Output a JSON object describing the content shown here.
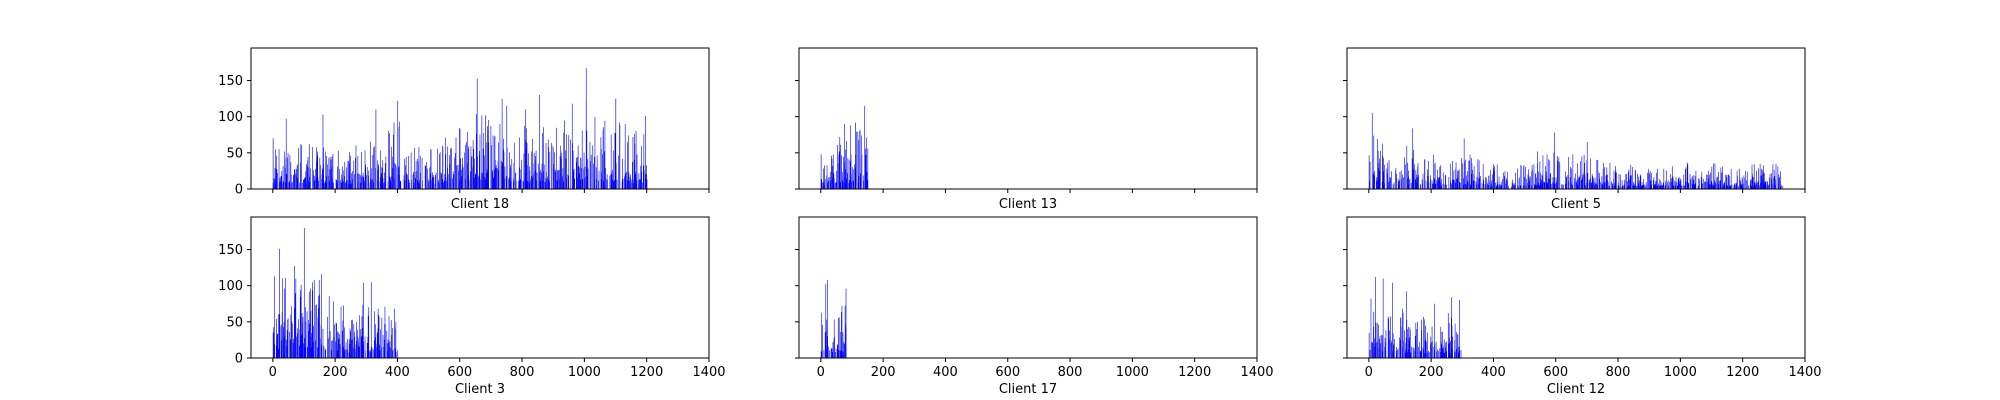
{
  "figure": {
    "layout": "2 rows x 3 columns of bar histograms",
    "sharex": true,
    "sharey": true
  },
  "chart_data": [
    {
      "type": "bar",
      "title": "",
      "xlabel": "Client 18",
      "ylabel": "",
      "xlim": [
        -70,
        1400
      ],
      "ylim": [
        0,
        195
      ],
      "color": "#0000ff",
      "xticks": [
        "0",
        "200",
        "400",
        "600",
        "800",
        "1000",
        "1200",
        "1400"
      ],
      "yticks": [
        "0",
        "50",
        "100",
        "150"
      ],
      "x_max": 1200,
      "peaks": [
        [
          0,
          70
        ],
        [
          42,
          97
        ],
        [
          160,
          103
        ],
        [
          330,
          110
        ],
        [
          400,
          122
        ],
        [
          655,
          153
        ],
        [
          735,
          125
        ],
        [
          750,
          115
        ],
        [
          810,
          110
        ],
        [
          855,
          130
        ],
        [
          960,
          118
        ],
        [
          1005,
          167
        ],
        [
          1100,
          125
        ],
        [
          1130,
          90
        ],
        [
          1165,
          80
        ],
        [
          1195,
          101
        ]
      ]
    },
    {
      "type": "bar",
      "title": "",
      "xlabel": "Client 13",
      "ylabel": "",
      "xlim": [
        -70,
        1400
      ],
      "ylim": [
        0,
        195
      ],
      "color": "#0000ff",
      "xticks": [
        "0",
        "200",
        "400",
        "600",
        "800",
        "1000",
        "1200",
        "1400"
      ],
      "yticks": [
        "0",
        "50",
        "100",
        "150"
      ],
      "x_max": 152,
      "peaks": [
        [
          0,
          14
        ],
        [
          30,
          12
        ],
        [
          60,
          72
        ],
        [
          75,
          90
        ],
        [
          95,
          88
        ],
        [
          110,
          92
        ],
        [
          125,
          82
        ],
        [
          140,
          115
        ],
        [
          150,
          56
        ]
      ]
    },
    {
      "type": "bar",
      "title": "",
      "xlabel": "Client 5",
      "ylabel": "",
      "xlim": [
        -70,
        1400
      ],
      "ylim": [
        0,
        195
      ],
      "color": "#0000ff",
      "xticks": [
        "0",
        "200",
        "400",
        "600",
        "800",
        "1000",
        "1200",
        "1400"
      ],
      "yticks": [
        "0",
        "50",
        "100",
        "150"
      ],
      "x_max": 1330,
      "peaks": [
        [
          10,
          105
        ],
        [
          140,
          84
        ],
        [
          305,
          70
        ],
        [
          540,
          52
        ],
        [
          595,
          78
        ],
        [
          700,
          65
        ],
        [
          900,
          21
        ],
        [
          1010,
          20
        ],
        [
          1260,
          28
        ],
        [
          1315,
          20
        ]
      ]
    },
    {
      "type": "bar",
      "title": "",
      "xlabel": "Client 3",
      "ylabel": "",
      "xlim": [
        -70,
        1400
      ],
      "ylim": [
        0,
        195
      ],
      "color": "#0000ff",
      "xticks": [
        "0",
        "200",
        "400",
        "600",
        "800",
        "1000",
        "1200",
        "1400"
      ],
      "yticks": [
        "0",
        "50",
        "100",
        "150"
      ],
      "x_max": 405,
      "peaks": [
        [
          5,
          113
        ],
        [
          20,
          151
        ],
        [
          100,
          180
        ],
        [
          120,
          96
        ],
        [
          290,
          104
        ],
        [
          315,
          105
        ],
        [
          390,
          68
        ]
      ]
    },
    {
      "type": "bar",
      "title": "",
      "xlabel": "Client 17",
      "ylabel": "",
      "xlim": [
        -70,
        1400
      ],
      "ylim": [
        0,
        195
      ],
      "color": "#0000ff",
      "xticks": [
        "0",
        "200",
        "400",
        "600",
        "800",
        "1000",
        "1200",
        "1400"
      ],
      "yticks": [
        "0",
        "50",
        "100",
        "150"
      ],
      "x_max": 80,
      "peaks": [
        [
          5,
          46
        ],
        [
          15,
          102
        ],
        [
          20,
          108
        ],
        [
          55,
          55
        ],
        [
          80,
          96
        ]
      ]
    },
    {
      "type": "bar",
      "title": "",
      "xlabel": "Client 12",
      "ylabel": "",
      "xlim": [
        -70,
        1400
      ],
      "ylim": [
        0,
        195
      ],
      "color": "#0000ff",
      "xticks": [
        "0",
        "200",
        "400",
        "600",
        "800",
        "1000",
        "1200",
        "1400"
      ],
      "yticks": [
        "0",
        "50",
        "100",
        "150"
      ],
      "x_max": 295,
      "peaks": [
        [
          20,
          112
        ],
        [
          45,
          110
        ],
        [
          75,
          104
        ],
        [
          120,
          92
        ],
        [
          210,
          75
        ],
        [
          265,
          84
        ],
        [
          290,
          80
        ]
      ]
    }
  ]
}
